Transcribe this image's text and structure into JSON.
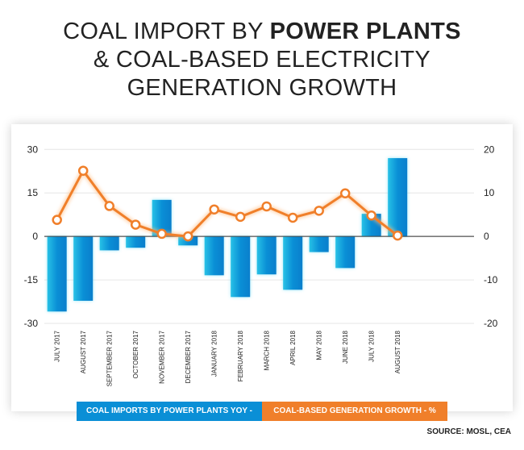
{
  "title": {
    "line1_regular": "COAL IMPORT BY ",
    "line1_bold": "POWER PLANTS",
    "line2": "& COAL-BASED ELECTRICITY",
    "line3": "GENERATION GROWTH"
  },
  "chart_data": {
    "type": "bar+line",
    "categories": [
      "JULY 2017",
      "AUGUST 2017",
      "SEPTEMBER 2017",
      "OCTOBER 2017",
      "NOVEMBER 2017",
      "DECEMBER 2017",
      "JANUARY 2018",
      "FEBRUARY 2018",
      "MARCH 2018",
      "APRIL 2018",
      "MAY 2018",
      "JUNE 2018",
      "JULY 2018",
      "AUGUST 2018"
    ],
    "series": [
      {
        "name": "COAL IMPORTS BY POWER PLANTS YOY - %",
        "type": "bar",
        "axis": "left",
        "color": "#0a8fd6",
        "values": [
          -25.9,
          -22.2,
          -4.8,
          -3.9,
          12.6,
          -3.1,
          -13.4,
          -20.9,
          -13.1,
          -18.4,
          -5.4,
          -10.9,
          7.8,
          27.0
        ]
      },
      {
        "name": "COAL-BASED GENERATION GROWTH - % (RHS)",
        "type": "line",
        "axis": "right",
        "color": "#f07f2a",
        "values": [
          3.8,
          15.1,
          7.0,
          2.7,
          0.6,
          0.0,
          6.2,
          4.5,
          6.9,
          4.3,
          5.9,
          9.9,
          4.8,
          0.2
        ]
      }
    ],
    "ylim_left": [
      -30,
      30
    ],
    "yticks_left": [
      "30",
      "15",
      "0",
      "-15",
      "-30"
    ],
    "ylim_right": [
      -20,
      20
    ],
    "yticks_right": [
      "20",
      "10",
      "0",
      "-10",
      "-20"
    ],
    "grid": true,
    "legend_position": "bottom"
  },
  "source": "SOURCE: MOSL, CEA"
}
